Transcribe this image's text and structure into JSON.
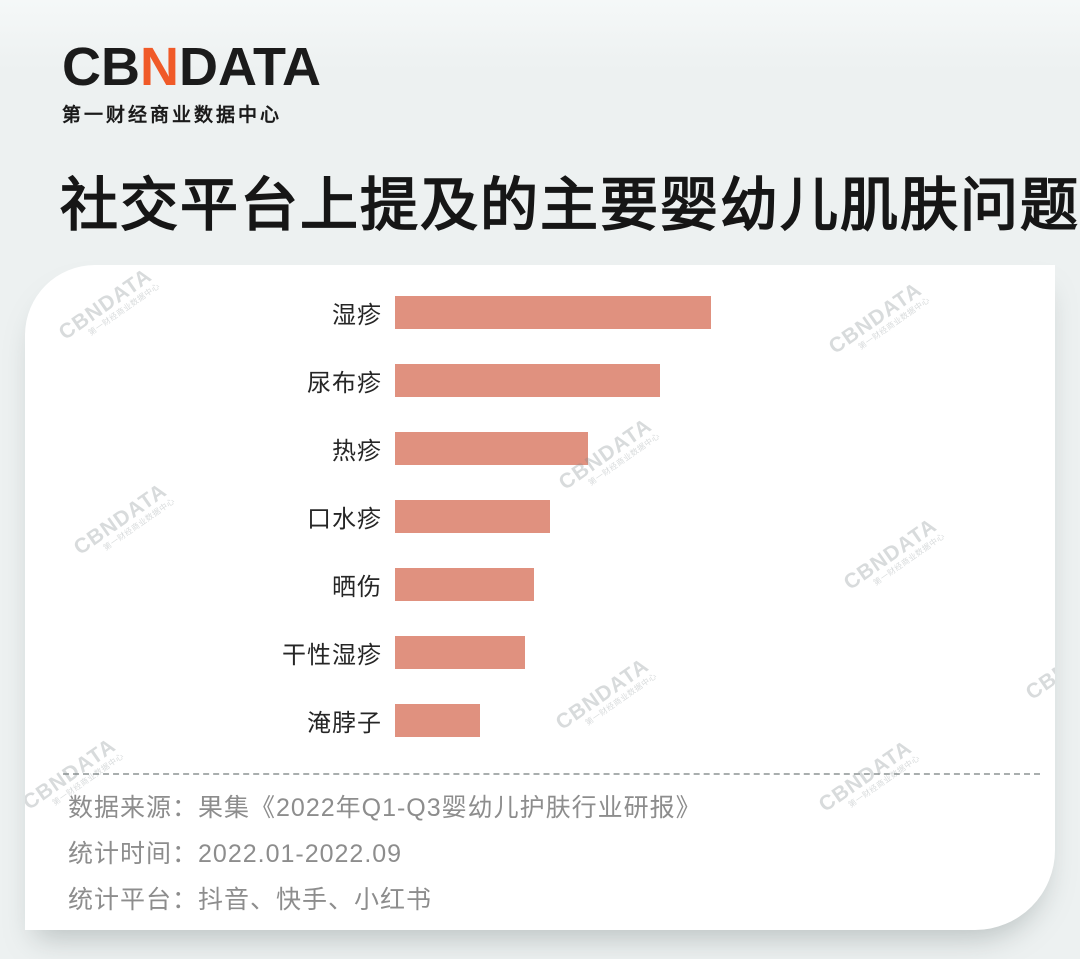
{
  "logo": {
    "part1": "CB",
    "accent": "N",
    "part2": "DATA",
    "subtitle": "第一财经商业数据中心",
    "accent_color": "#F05A28"
  },
  "title": "社交平台上提及的主要婴幼儿肌肤问题",
  "chart_data": {
    "type": "bar",
    "orientation": "horizontal",
    "title": "社交平台上提及的主要婴幼儿肌肤问题",
    "categories": [
      "湿疹",
      "尿布疹",
      "热疹",
      "口水疹",
      "晒伤",
      "干性湿疹",
      "淹脖子"
    ],
    "values": [
      100,
      84,
      61,
      49,
      44,
      41,
      27
    ],
    "value_unit": "relative mention volume, estimated from bar lengths (max bar = 100); no axis or value labels shown",
    "bar_color": "#E0917F",
    "value_labels_shown": false,
    "grid": false,
    "xlabel": "",
    "ylabel": ""
  },
  "footer": {
    "lines": [
      {
        "label": "数据来源：",
        "value": "果集《2022年Q1-Q3婴幼儿护肤行业研报》"
      },
      {
        "label": "统计时间：",
        "value": "2022.01-2022.09"
      },
      {
        "label": "统计平台：",
        "value": "抖音、快手、小红书"
      }
    ]
  },
  "watermark": {
    "text": "CBNDATA",
    "subtext": "第一财经商业数据中心"
  },
  "colors": {
    "background": "#EDF1F1",
    "card": "#FFFFFF",
    "bar": "#E0917F",
    "footer_text": "#8D8D8D",
    "title_text": "#161616"
  }
}
